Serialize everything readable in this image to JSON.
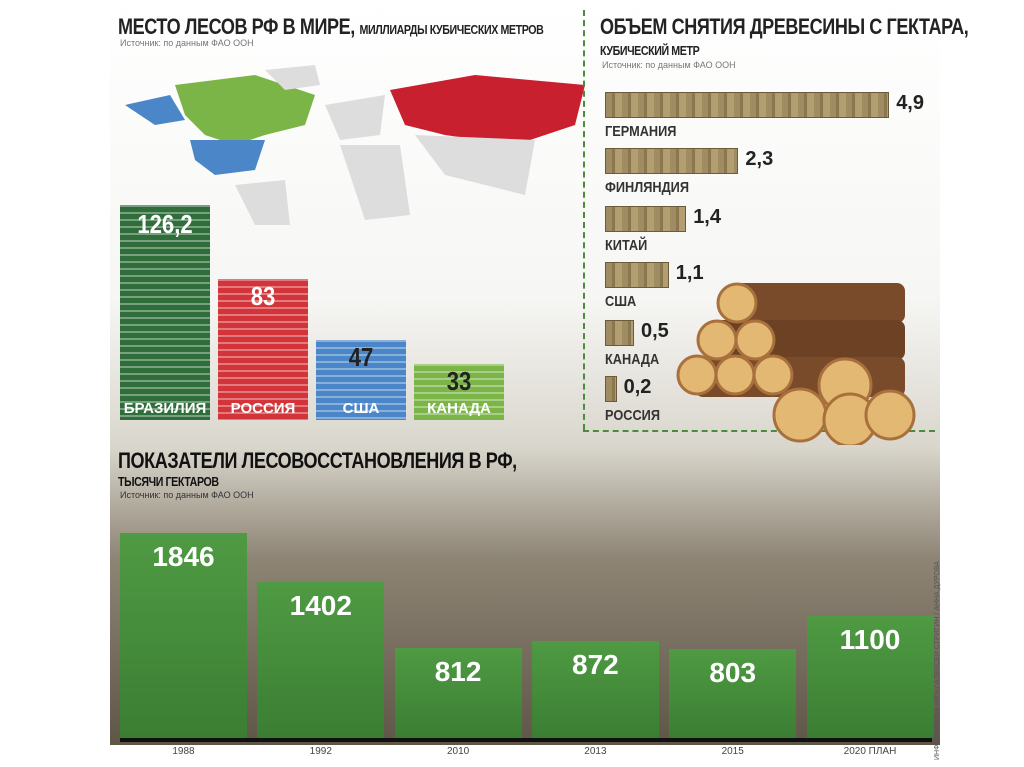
{
  "chart_data": [
    {
      "type": "bar",
      "title": "МЕСТО ЛЕСОВ РФ В МИРЕ,",
      "subtitle": "МИЛЛИАРДЫ КУБИЧЕСКИХ МЕТРОВ",
      "source": "Источник: по данным ФАО ООН",
      "categories": [
        "БРАЗИЛИЯ",
        "РОССИЯ",
        "США",
        "КАНАДА"
      ],
      "values": [
        126.2,
        83,
        47,
        33
      ],
      "labels": [
        "126,2",
        "83",
        "47",
        "33"
      ],
      "colors": [
        "#2f6e3a",
        "#d2343a",
        "#4a86c8",
        "#7bb547"
      ]
    },
    {
      "type": "bar",
      "orientation": "horizontal",
      "title": "ОБЪЕМ СНЯТИЯ ДРЕВЕСИНЫ С ГЕКТАРА,",
      "subtitle": "КУБИЧЕСКИЙ МЕТР",
      "source": "Источник: по данным ФАО ООН",
      "categories": [
        "ГЕРМАНИЯ",
        "ФИНЛЯНДИЯ",
        "КИТАЙ",
        "США",
        "КАНАДА",
        "РОССИЯ"
      ],
      "values": [
        4.9,
        2.3,
        1.4,
        1.1,
        0.5,
        0.2
      ],
      "labels": [
        "4,9",
        "2,3",
        "1,4",
        "1,1",
        "0,5",
        "0,2"
      ]
    },
    {
      "type": "bar",
      "title": "ПОКАЗАТЕЛИ ЛЕСОВОССТАНОВЛЕНИЯ В РФ,",
      "subtitle": "ТЫСЯЧИ ГЕКТАРОВ",
      "source": "Источник: по данным ФАО ООН",
      "categories": [
        "1988",
        "1992",
        "2010",
        "2013",
        "2015",
        "2020 ПЛАН"
      ],
      "values": [
        1846,
        1402,
        812,
        872,
        803,
        1100
      ],
      "labels": [
        "1846",
        "1402",
        "812",
        "872",
        "803",
        "1100"
      ]
    }
  ],
  "credit": "ИНФОГРАФИКА «РГ» / АЛЕКСЕЙ СТРИГИН / АННА ДУРОВА"
}
